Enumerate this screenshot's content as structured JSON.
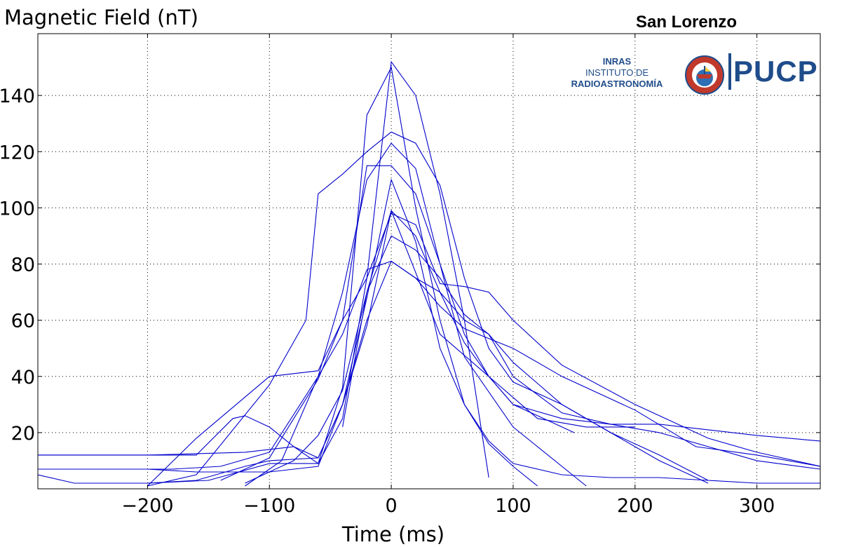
{
  "header": {
    "y_axis_title": "Magnetic Field (nT)",
    "station": "San Lorenzo"
  },
  "logo": {
    "inras_line1": "INRAS",
    "inras_line2": "INSTITUTO DE",
    "inras_line3": "RADIOASTRONOMÍA",
    "pucp": "PUCP",
    "seal_text": "ET LUX IN TENEBRIS LUCET"
  },
  "colors": {
    "line": "#0000cc",
    "grid": "#000000",
    "axis": "#000000",
    "brand": "#1f4c8a"
  },
  "chart_data": {
    "type": "line",
    "title": "",
    "xlabel": "Time (ms)",
    "ylabel": "Magnetic Field (nT)",
    "xlim": [
      -290,
      352
    ],
    "ylim": [
      0,
      162
    ],
    "xticks": [
      -200,
      -100,
      0,
      100,
      200,
      300
    ],
    "yticks": [
      20,
      40,
      60,
      80,
      100,
      120,
      140
    ],
    "grid": true,
    "series": [
      {
        "x": [
          -290,
          -200,
          -120,
          -80,
          -60,
          -40,
          -20,
          0,
          20,
          40,
          60,
          80
        ],
        "y": [
          12,
          12,
          13,
          15,
          9,
          25,
          75,
          152,
          140,
          105,
          60,
          4
        ]
      },
      {
        "x": [
          -200,
          -150,
          -100,
          -60,
          -40,
          -20,
          0,
          20,
          40,
          60,
          80,
          100,
          120
        ],
        "y": [
          2,
          3,
          9,
          9,
          36,
          133,
          150,
          100,
          60,
          30,
          16,
          8,
          1
        ]
      },
      {
        "x": [
          -250,
          -180,
          -140,
          -100,
          -60,
          -40,
          -20,
          0,
          20,
          40,
          60,
          100,
          160
        ],
        "y": [
          7,
          7,
          8,
          13,
          40,
          70,
          110,
          123,
          114,
          80,
          47,
          22,
          1
        ]
      },
      {
        "x": [
          -200,
          -160,
          -100,
          -60,
          -40,
          -20,
          0,
          20,
          40,
          60,
          80,
          120,
          160,
          200
        ],
        "y": [
          1,
          18,
          40,
          42,
          60,
          115,
          115,
          105,
          80,
          55,
          40,
          25,
          22,
          22
        ]
      },
      {
        "x": [
          -290,
          -250,
          -200,
          -160,
          -120,
          -100,
          -80,
          -60,
          -40,
          -20,
          0,
          20,
          40,
          60,
          80,
          100,
          140,
          180,
          220,
          260,
          300,
          352
        ],
        "y": [
          7,
          7,
          7,
          6,
          6,
          6,
          7,
          8,
          30,
          68,
          110,
          88,
          50,
          30,
          17,
          9,
          5,
          4,
          4,
          3,
          2,
          2
        ]
      },
      {
        "x": [
          -140,
          -100,
          -80,
          -60,
          -40,
          -20,
          0,
          20,
          40,
          60,
          80,
          100,
          140,
          200,
          260,
          300,
          352
        ],
        "y": [
          3,
          11,
          25,
          39,
          60,
          75,
          98,
          94,
          73,
          72,
          70,
          60,
          44,
          30,
          18,
          13,
          8
        ]
      },
      {
        "x": [
          -120,
          -90,
          -60,
          -40,
          -20,
          0,
          20,
          40,
          60,
          100,
          140,
          200,
          250,
          300,
          352
        ],
        "y": [
          1,
          10,
          40,
          55,
          78,
          81,
          75,
          65,
          57,
          50,
          40,
          28,
          15,
          12,
          8
        ]
      },
      {
        "x": [
          -290,
          -260,
          -200,
          -160,
          -130,
          -120,
          -100,
          -80,
          -60,
          -40,
          -20,
          0,
          20,
          40,
          60,
          80,
          100,
          140,
          180,
          220,
          260
        ],
        "y": [
          12,
          12,
          12,
          12,
          25,
          26,
          22,
          15,
          11,
          30,
          60,
          81,
          75,
          70,
          60,
          55,
          45,
          30,
          20,
          10,
          2
        ]
      },
      {
        "x": [
          -290,
          -260,
          -200,
          -160,
          -120,
          -100,
          -60,
          -40,
          -20,
          0,
          40,
          80,
          100,
          120,
          150
        ],
        "y": [
          5,
          2,
          2,
          3,
          8,
          10,
          11,
          30,
          58,
          99,
          55,
          40,
          30,
          26,
          20
        ]
      },
      {
        "x": [
          -200,
          -160,
          -100,
          -70,
          -60,
          -40,
          -20,
          0,
          20,
          40,
          60,
          80,
          100,
          140,
          180,
          220,
          260
        ],
        "y": [
          1,
          5,
          37,
          60,
          105,
          112,
          120,
          127,
          123,
          108,
          75,
          50,
          38,
          30,
          20,
          12,
          3
        ]
      },
      {
        "x": [
          -120,
          -80,
          -60,
          -40,
          -20,
          0,
          20,
          40,
          60,
          80,
          100,
          140,
          180,
          220,
          260,
          300,
          352
        ],
        "y": [
          2,
          10,
          19,
          35,
          70,
          99,
          90,
          70,
          52,
          40,
          30,
          25,
          23,
          23,
          21,
          19,
          17
        ]
      },
      {
        "x": [
          -40,
          -20,
          0,
          20,
          40,
          60,
          80,
          100,
          140,
          180,
          220,
          260,
          300,
          352
        ],
        "y": [
          22,
          70,
          90,
          85,
          75,
          62,
          55,
          40,
          27,
          23,
          20,
          15,
          10,
          7
        ]
      }
    ]
  }
}
